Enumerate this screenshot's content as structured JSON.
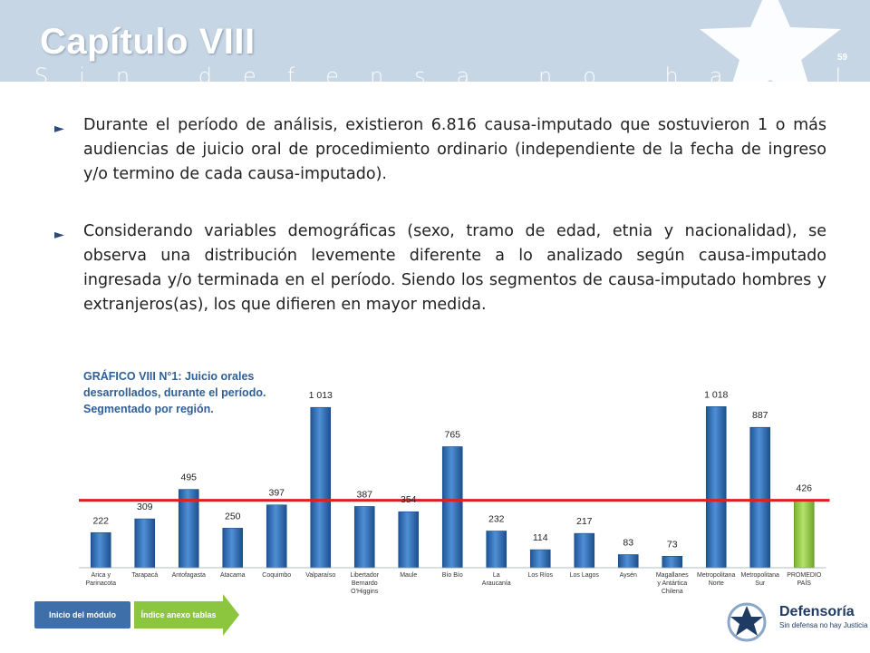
{
  "header": {
    "title": "Capítulo VIII",
    "subtitle": "Sin defensa no hay Justicia",
    "page_number": "59"
  },
  "bullets": [
    "Durante el período de análisis, existieron 6.816 causa-imputado que sostuvieron 1 o más audiencias de juicio oral de procedimiento ordinario (independiente de la fecha de ingreso y/o termino de cada causa-imputado).",
    "Considerando variables demográficas (sexo, tramo de edad, etnia y nacionalidad), se observa una distribución levemente diferente a lo analizado según causa-imputado ingresada y/o terminada en el período. Siendo los segmentos de causa-imputado hombres y extranjeros(as), los que difieren en mayor medida."
  ],
  "chart_data": {
    "type": "bar",
    "title": "GRÁFICO VIII N°1: Juicio orales desarrollados, durante el período. Segmentado por región.",
    "categories": [
      "Arica y Parinacota",
      "Tarapacá",
      "Antofagasta",
      "Atacama",
      "Coquimbo",
      "Valparaíso",
      "Libertador Bernardo O'Higgins",
      "Maule",
      "Bío Bío",
      "La Araucanía",
      "Los Ríos",
      "Los Lagos",
      "Aysén",
      "Magallanes y Antártica Chilena",
      "Metropolitana Norte",
      "Metropolitana Sur",
      "PROMEDIO PAÍS"
    ],
    "values": [
      222,
      309,
      495,
      250,
      397,
      1013,
      387,
      354,
      765,
      232,
      114,
      217,
      83,
      73,
      1018,
      887,
      426
    ],
    "value_labels": [
      "222",
      "309",
      "495",
      "250",
      "397",
      "1 013",
      "387",
      "354",
      "765",
      "232",
      "114",
      "217",
      "83",
      "73",
      "1 018",
      "887",
      "426"
    ],
    "reference_line": {
      "value": 426
    },
    "ylim": [
      0,
      1020
    ],
    "grid": false,
    "colors": {
      "bar": "#2e6db3",
      "bar_light": "#6fa3dd",
      "average_bar": "#8cc63f",
      "reference_line": "#e02020"
    }
  },
  "nav": {
    "inicio_label": "Inicio del módulo",
    "indice_label": "Índice anexo tablas"
  },
  "logo": {
    "name": "Defensoría",
    "tagline": "Sin defensa no hay Justicia"
  }
}
